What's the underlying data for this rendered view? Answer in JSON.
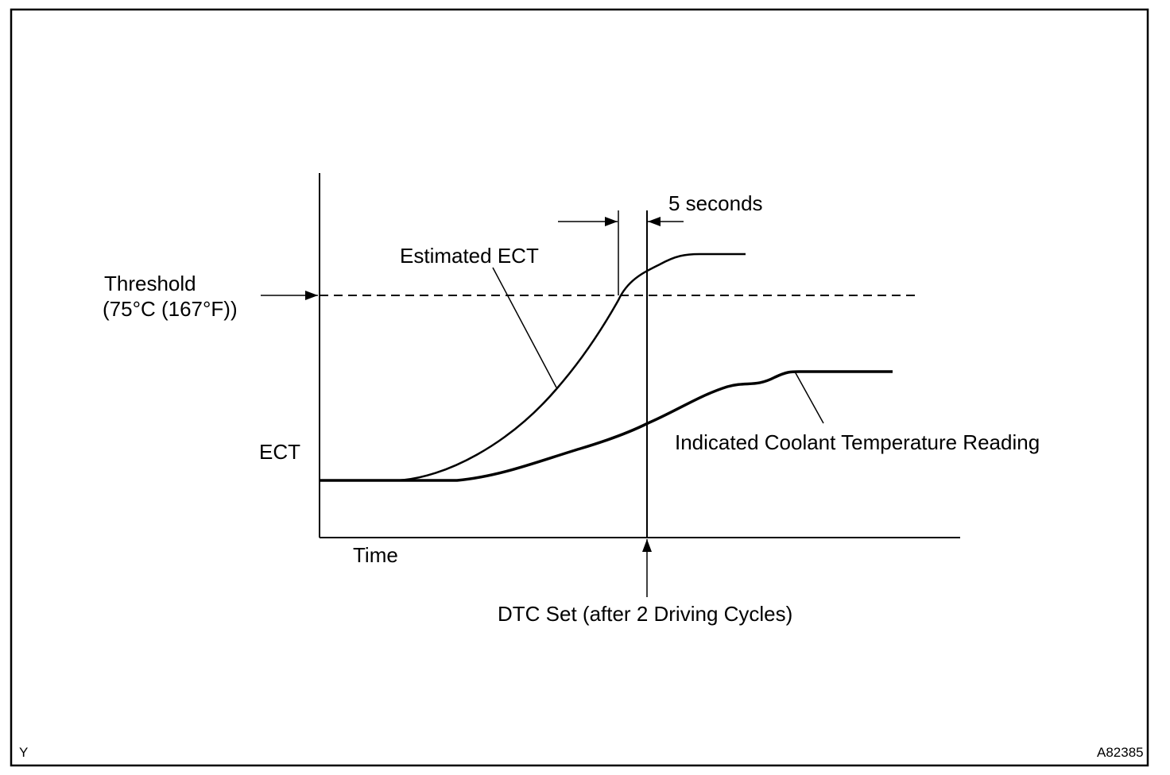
{
  "diagram": {
    "labels": {
      "threshold_line1": "Threshold",
      "threshold_line2": "(75°C (167°F))",
      "estimated_ect": "Estimated ECT",
      "five_seconds": "5 seconds",
      "y_axis": "ECT",
      "x_axis": "Time",
      "indicated_reading": "Indicated Coolant Temperature Reading",
      "dtc_set": "DTC Set (after 2 Driving Cycles)"
    },
    "corner_codes": {
      "left": "Y",
      "right": "A82385"
    },
    "colors": {
      "ink": "#000000",
      "background": "#ffffff"
    }
  }
}
